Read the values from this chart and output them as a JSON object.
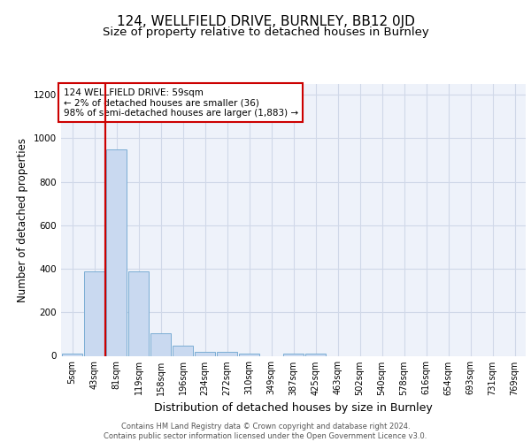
{
  "title": "124, WELLFIELD DRIVE, BURNLEY, BB12 0JD",
  "subtitle": "Size of property relative to detached houses in Burnley",
  "xlabel": "Distribution of detached houses by size in Burnley",
  "ylabel": "Number of detached properties",
  "categories": [
    "5sqm",
    "43sqm",
    "81sqm",
    "119sqm",
    "158sqm",
    "196sqm",
    "234sqm",
    "272sqm",
    "310sqm",
    "349sqm",
    "387sqm",
    "425sqm",
    "463sqm",
    "502sqm",
    "540sqm",
    "578sqm",
    "616sqm",
    "654sqm",
    "693sqm",
    "731sqm",
    "769sqm"
  ],
  "bar_heights": [
    10,
    390,
    950,
    390,
    105,
    48,
    20,
    18,
    10,
    0,
    12,
    12,
    0,
    0,
    0,
    0,
    0,
    0,
    0,
    0,
    0
  ],
  "bar_color": "#c9d9f0",
  "bar_edge_color": "#7aadd4",
  "grid_color": "#d0d8e8",
  "background_color": "#eef2fa",
  "vline_color": "#cc0000",
  "vline_x_index": 1.5,
  "annotation_text": "124 WELLFIELD DRIVE: 59sqm\n← 2% of detached houses are smaller (36)\n98% of semi-detached houses are larger (1,883) →",
  "annotation_box_facecolor": "#ffffff",
  "annotation_box_edgecolor": "#cc0000",
  "ylim": [
    0,
    1250
  ],
  "yticks": [
    0,
    200,
    400,
    600,
    800,
    1000,
    1200
  ],
  "footer": "Contains HM Land Registry data © Crown copyright and database right 2024.\nContains public sector information licensed under the Open Government Licence v3.0.",
  "title_fontsize": 11,
  "subtitle_fontsize": 9.5,
  "ylabel_fontsize": 8.5,
  "xlabel_fontsize": 9,
  "tick_fontsize": 7,
  "footer_fontsize": 6,
  "annotation_fontsize": 7.5
}
